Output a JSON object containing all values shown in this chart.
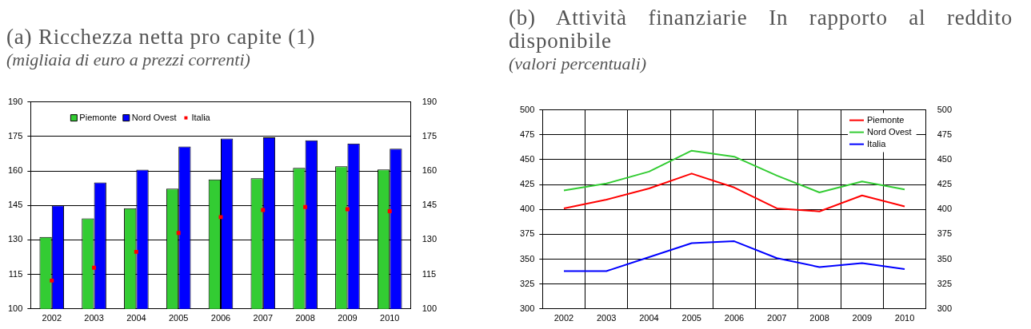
{
  "chart_data": [
    {
      "type": "bar",
      "title": "(a) Ricchezza netta pro capite (1)",
      "subtitle": "(migliaia di euro a prezzi correnti)",
      "categories": [
        "2002",
        "2003",
        "2004",
        "2005",
        "2006",
        "2007",
        "2008",
        "2009",
        "2010"
      ],
      "series": [
        {
          "name": "Piemonte",
          "color": "#33cc33",
          "values": [
            131.3,
            139.3,
            143.8,
            152.3,
            156.3,
            156.8,
            161.3,
            162,
            160.6
          ]
        },
        {
          "name": "Nord Ovest",
          "color": "#0000ff",
          "values": [
            145,
            155,
            160.5,
            170.6,
            174.1,
            174.6,
            173.3,
            171.9,
            169.6
          ]
        },
        {
          "name": "Italia",
          "type": "scatter",
          "color": "#ff0000",
          "values": [
            112.3,
            117.9,
            124.8,
            133,
            139.9,
            143,
            144.3,
            143.3,
            142.5
          ]
        }
      ],
      "ylim": [
        100,
        190
      ],
      "yticks": [
        100,
        115,
        130,
        145,
        160,
        175,
        190
      ],
      "y2lim": [
        100,
        190
      ],
      "y2ticks": [
        100,
        115,
        130,
        145,
        160,
        175,
        190
      ],
      "grid": "y",
      "legend": "top left",
      "marker": "square"
    },
    {
      "type": "line",
      "title": "(b) Attività finanziarie In rapporto al reddito disponibile",
      "subtitle": "(valori percentuali)",
      "categories": [
        "2002",
        "2003",
        "2004",
        "2005",
        "2006",
        "2007",
        "2008",
        "2009",
        "2010"
      ],
      "series": [
        {
          "name": "Piemonte",
          "color": "#ff0000",
          "values": [
            401,
            409.8,
            421,
            436,
            422,
            401,
            398,
            414,
            403
          ]
        },
        {
          "name": "Nord Ovest",
          "color": "#33cc33",
          "values": [
            419,
            426,
            438,
            459,
            453,
            434,
            417,
            428,
            420
          ]
        },
        {
          "name": "Italia",
          "color": "#0000ff",
          "values": [
            338,
            338,
            352,
            366,
            368,
            351,
            342,
            346,
            340
          ]
        }
      ],
      "ylim": [
        300,
        500
      ],
      "yticks": [
        300,
        325,
        350,
        375,
        400,
        425,
        450,
        475,
        500
      ],
      "y2lim": [
        300,
        500
      ],
      "y2ticks": [
        300,
        325,
        350,
        375,
        400,
        425,
        450,
        475,
        500
      ],
      "grid": true,
      "legend": "top right",
      "marker": "none",
      "line_style": "solid"
    }
  ]
}
